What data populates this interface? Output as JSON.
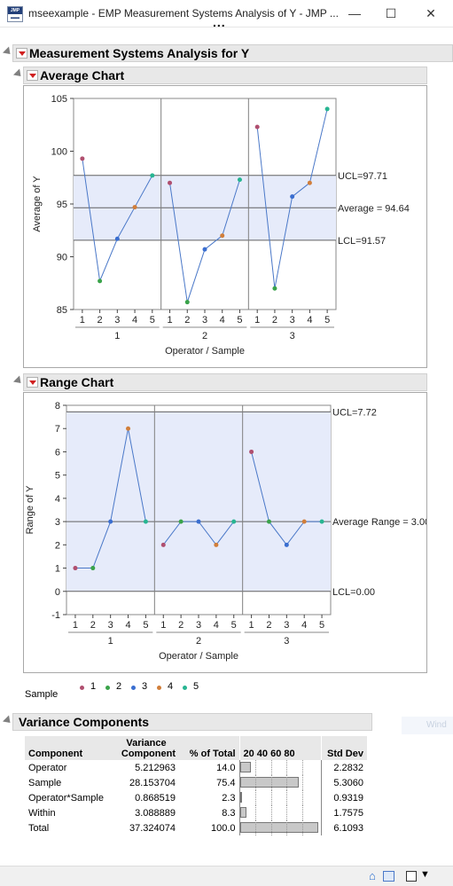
{
  "window": {
    "title": "mseexample - EMP Measurement Systems Analysis of Y - JMP ...",
    "icon_text": "JMP",
    "minimize_glyph": "—",
    "maximize_glyph": "☐",
    "close_glyph": "✕",
    "more_glyph": "..."
  },
  "report": {
    "title": "Measurement Systems Analysis for Y"
  },
  "average_chart": {
    "heading": "Average Chart",
    "ylabel": "Average of Y",
    "xlabel": "Operator  /  Sample",
    "ucl_label": "UCL=97.71",
    "avg_label": "Average = 94.64",
    "lcl_label": "LCL=91.57",
    "y_ticks": [
      "85",
      "90",
      "95",
      "100",
      "105"
    ],
    "sample_ticks": [
      "1",
      "2",
      "3",
      "4",
      "5"
    ],
    "operator_ticks": [
      "1",
      "2",
      "3"
    ]
  },
  "range_chart": {
    "heading": "Range Chart",
    "ylabel": "Range of Y",
    "xlabel": "Operator  /  Sample",
    "ucl_label": "UCL=7.72",
    "avg_label": "Average Range = 3.00",
    "lcl_label": "LCL=0.00",
    "y_ticks": [
      "-1",
      "0",
      "1",
      "2",
      "3",
      "4",
      "5",
      "6",
      "7",
      "8"
    ],
    "sample_ticks": [
      "1",
      "2",
      "3",
      "4",
      "5"
    ],
    "operator_ticks": [
      "1",
      "2",
      "3"
    ]
  },
  "legend": {
    "title": "Sample",
    "items": [
      {
        "label": "1",
        "color": "#b04f6f"
      },
      {
        "label": "2",
        "color": "#3aa34a"
      },
      {
        "label": "3",
        "color": "#3a6ed0"
      },
      {
        "label": "4",
        "color": "#d17e3a"
      },
      {
        "label": "5",
        "color": "#27b592"
      }
    ]
  },
  "variance": {
    "heading": "Variance Components",
    "headers": {
      "component": "Component",
      "variance_top": "Variance",
      "variance_bottom": "Component",
      "pct": "% of Total",
      "scale": "20 40 60 80",
      "sd": "Std Dev"
    },
    "rows": [
      {
        "component": "Operator",
        "variance": "5.212963",
        "pct": "14.0",
        "sd": "2.2832"
      },
      {
        "component": "Sample",
        "variance": "28.153704",
        "pct": "75.4",
        "sd": "5.3060"
      },
      {
        "component": "Operator*Sample",
        "variance": "0.868519",
        "pct": "2.3",
        "sd": "0.9319"
      },
      {
        "component": "Within",
        "variance": "3.088889",
        "pct": "8.3",
        "sd": "1.7575"
      },
      {
        "component": "Total",
        "variance": "37.324074",
        "pct": "100.0",
        "sd": "6.1093"
      }
    ],
    "pct_values": [
      14.0,
      75.4,
      2.3,
      8.3,
      100.0
    ]
  },
  "watermark": "Wind",
  "colors": {
    "limits_fill": "#e6ebfa",
    "line": "#4a78c8"
  },
  "chart_data": [
    {
      "type": "line",
      "ylabel": "Average of Y",
      "xlabel": "Operator / Sample",
      "ylim": [
        85,
        105
      ],
      "categories": [
        "1-1",
        "1-2",
        "1-3",
        "1-4",
        "1-5",
        "2-1",
        "2-2",
        "2-3",
        "2-4",
        "2-5",
        "3-1",
        "3-2",
        "3-3",
        "3-4",
        "3-5"
      ],
      "values": [
        99.3,
        87.7,
        91.7,
        94.7,
        97.7,
        97.0,
        85.7,
        90.7,
        92.0,
        97.3,
        102.3,
        87.0,
        95.7,
        97.0,
        104.0
      ],
      "ucl": 97.71,
      "center": 94.64,
      "lcl": 91.57
    },
    {
      "type": "line",
      "ylabel": "Range of Y",
      "xlabel": "Operator / Sample",
      "ylim": [
        -1,
        8
      ],
      "categories": [
        "1-1",
        "1-2",
        "1-3",
        "1-4",
        "1-5",
        "2-1",
        "2-2",
        "2-3",
        "2-4",
        "2-5",
        "3-1",
        "3-2",
        "3-3",
        "3-4",
        "3-5"
      ],
      "values": [
        1,
        1,
        3,
        7,
        3,
        2,
        3,
        3,
        2,
        3,
        6,
        3,
        2,
        3,
        3
      ],
      "ucl": 7.72,
      "center": 3.0,
      "lcl": 0.0
    }
  ]
}
